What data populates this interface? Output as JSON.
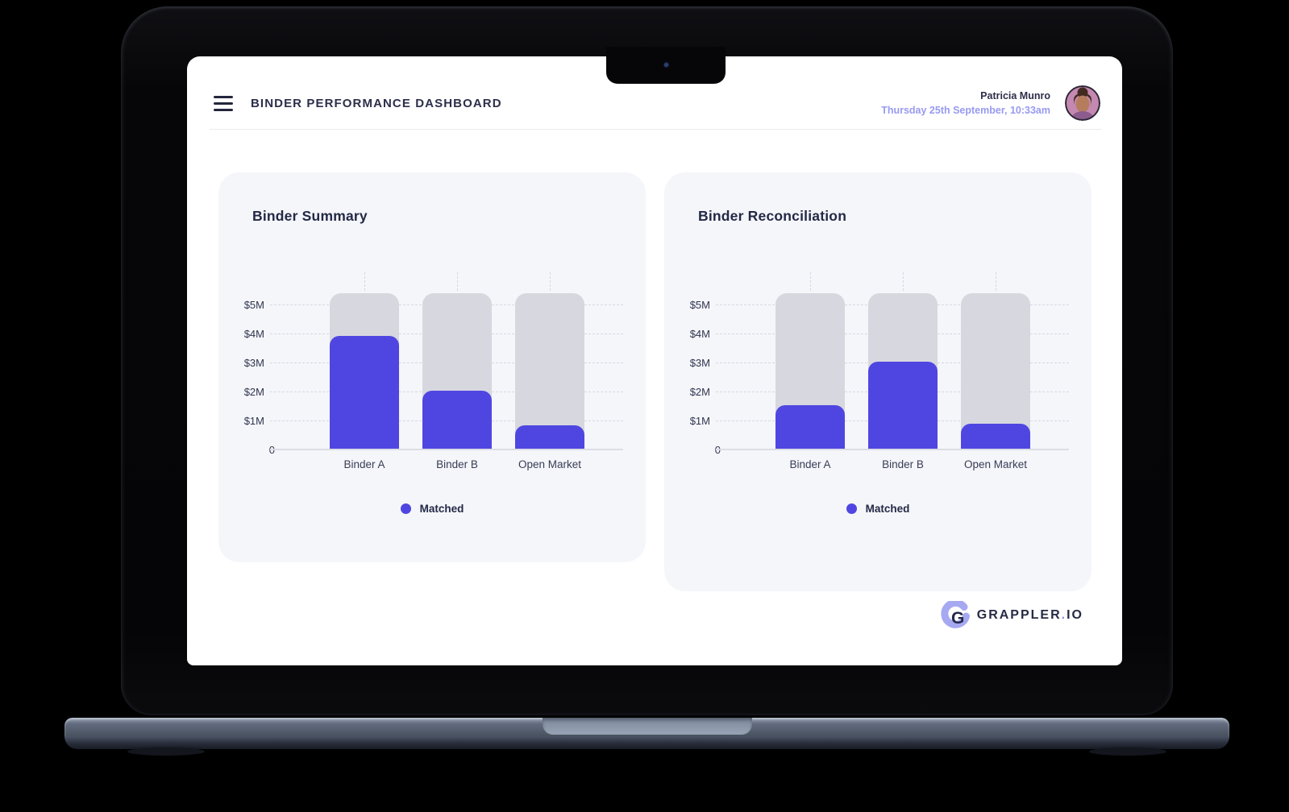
{
  "header": {
    "title": "BINDER PERFORMANCE DASHBOARD",
    "user": {
      "name": "Patricia Munro",
      "datetime": "Thursday 25th September, 10:33am"
    }
  },
  "chart_data": [
    {
      "type": "bar",
      "title": "Binder Summary",
      "categories": [
        "Binder A",
        "Binder B",
        "Open Market"
      ],
      "series": [
        {
          "name": "Matched",
          "values": [
            3.9,
            2.0,
            0.8
          ],
          "color": "#4f46e2"
        }
      ],
      "background_bars": {
        "value": 5.35,
        "color": "#d7d8df"
      },
      "yticks": [
        {
          "label": "$5M",
          "value": 5
        },
        {
          "label": "$4M",
          "value": 4
        },
        {
          "label": "$3M",
          "value": 3
        },
        {
          "label": "$2M",
          "value": 2
        },
        {
          "label": "$1M",
          "value": 1
        },
        {
          "label": "0",
          "value": 0
        }
      ],
      "ylim": [
        0,
        5.35
      ],
      "unit": "$M",
      "grid": "dashed",
      "legend_position": "bottom"
    },
    {
      "type": "bar",
      "title": "Binder Reconciliation",
      "categories": [
        "Binder A",
        "Binder B",
        "Open Market"
      ],
      "series": [
        {
          "name": "Matched",
          "values": [
            1.5,
            3.0,
            0.85
          ],
          "color": "#4f46e2"
        }
      ],
      "background_bars": {
        "value": 5.35,
        "color": "#d7d8df"
      },
      "yticks": [
        {
          "label": "$5M",
          "value": 5
        },
        {
          "label": "$4M",
          "value": 4
        },
        {
          "label": "$3M",
          "value": 3
        },
        {
          "label": "$2M",
          "value": 2
        },
        {
          "label": "$1M",
          "value": 1
        },
        {
          "label": "0",
          "value": 0
        }
      ],
      "ylim": [
        0,
        5.35
      ],
      "unit": "$M",
      "grid": "dashed",
      "legend_position": "bottom"
    }
  ],
  "footer": {
    "brand": "GRAPPLER",
    "separator": ".",
    "suffix": "IO",
    "logo_letter": "G"
  },
  "colors": {
    "accent": "#4f46e2",
    "bar_background": "#d7d8df",
    "card_background": "#f5f6fa",
    "date_text": "#989af1",
    "heading_text": "#2b2f4a",
    "screen_surface": "#ffffff",
    "page_background": "#000000"
  }
}
